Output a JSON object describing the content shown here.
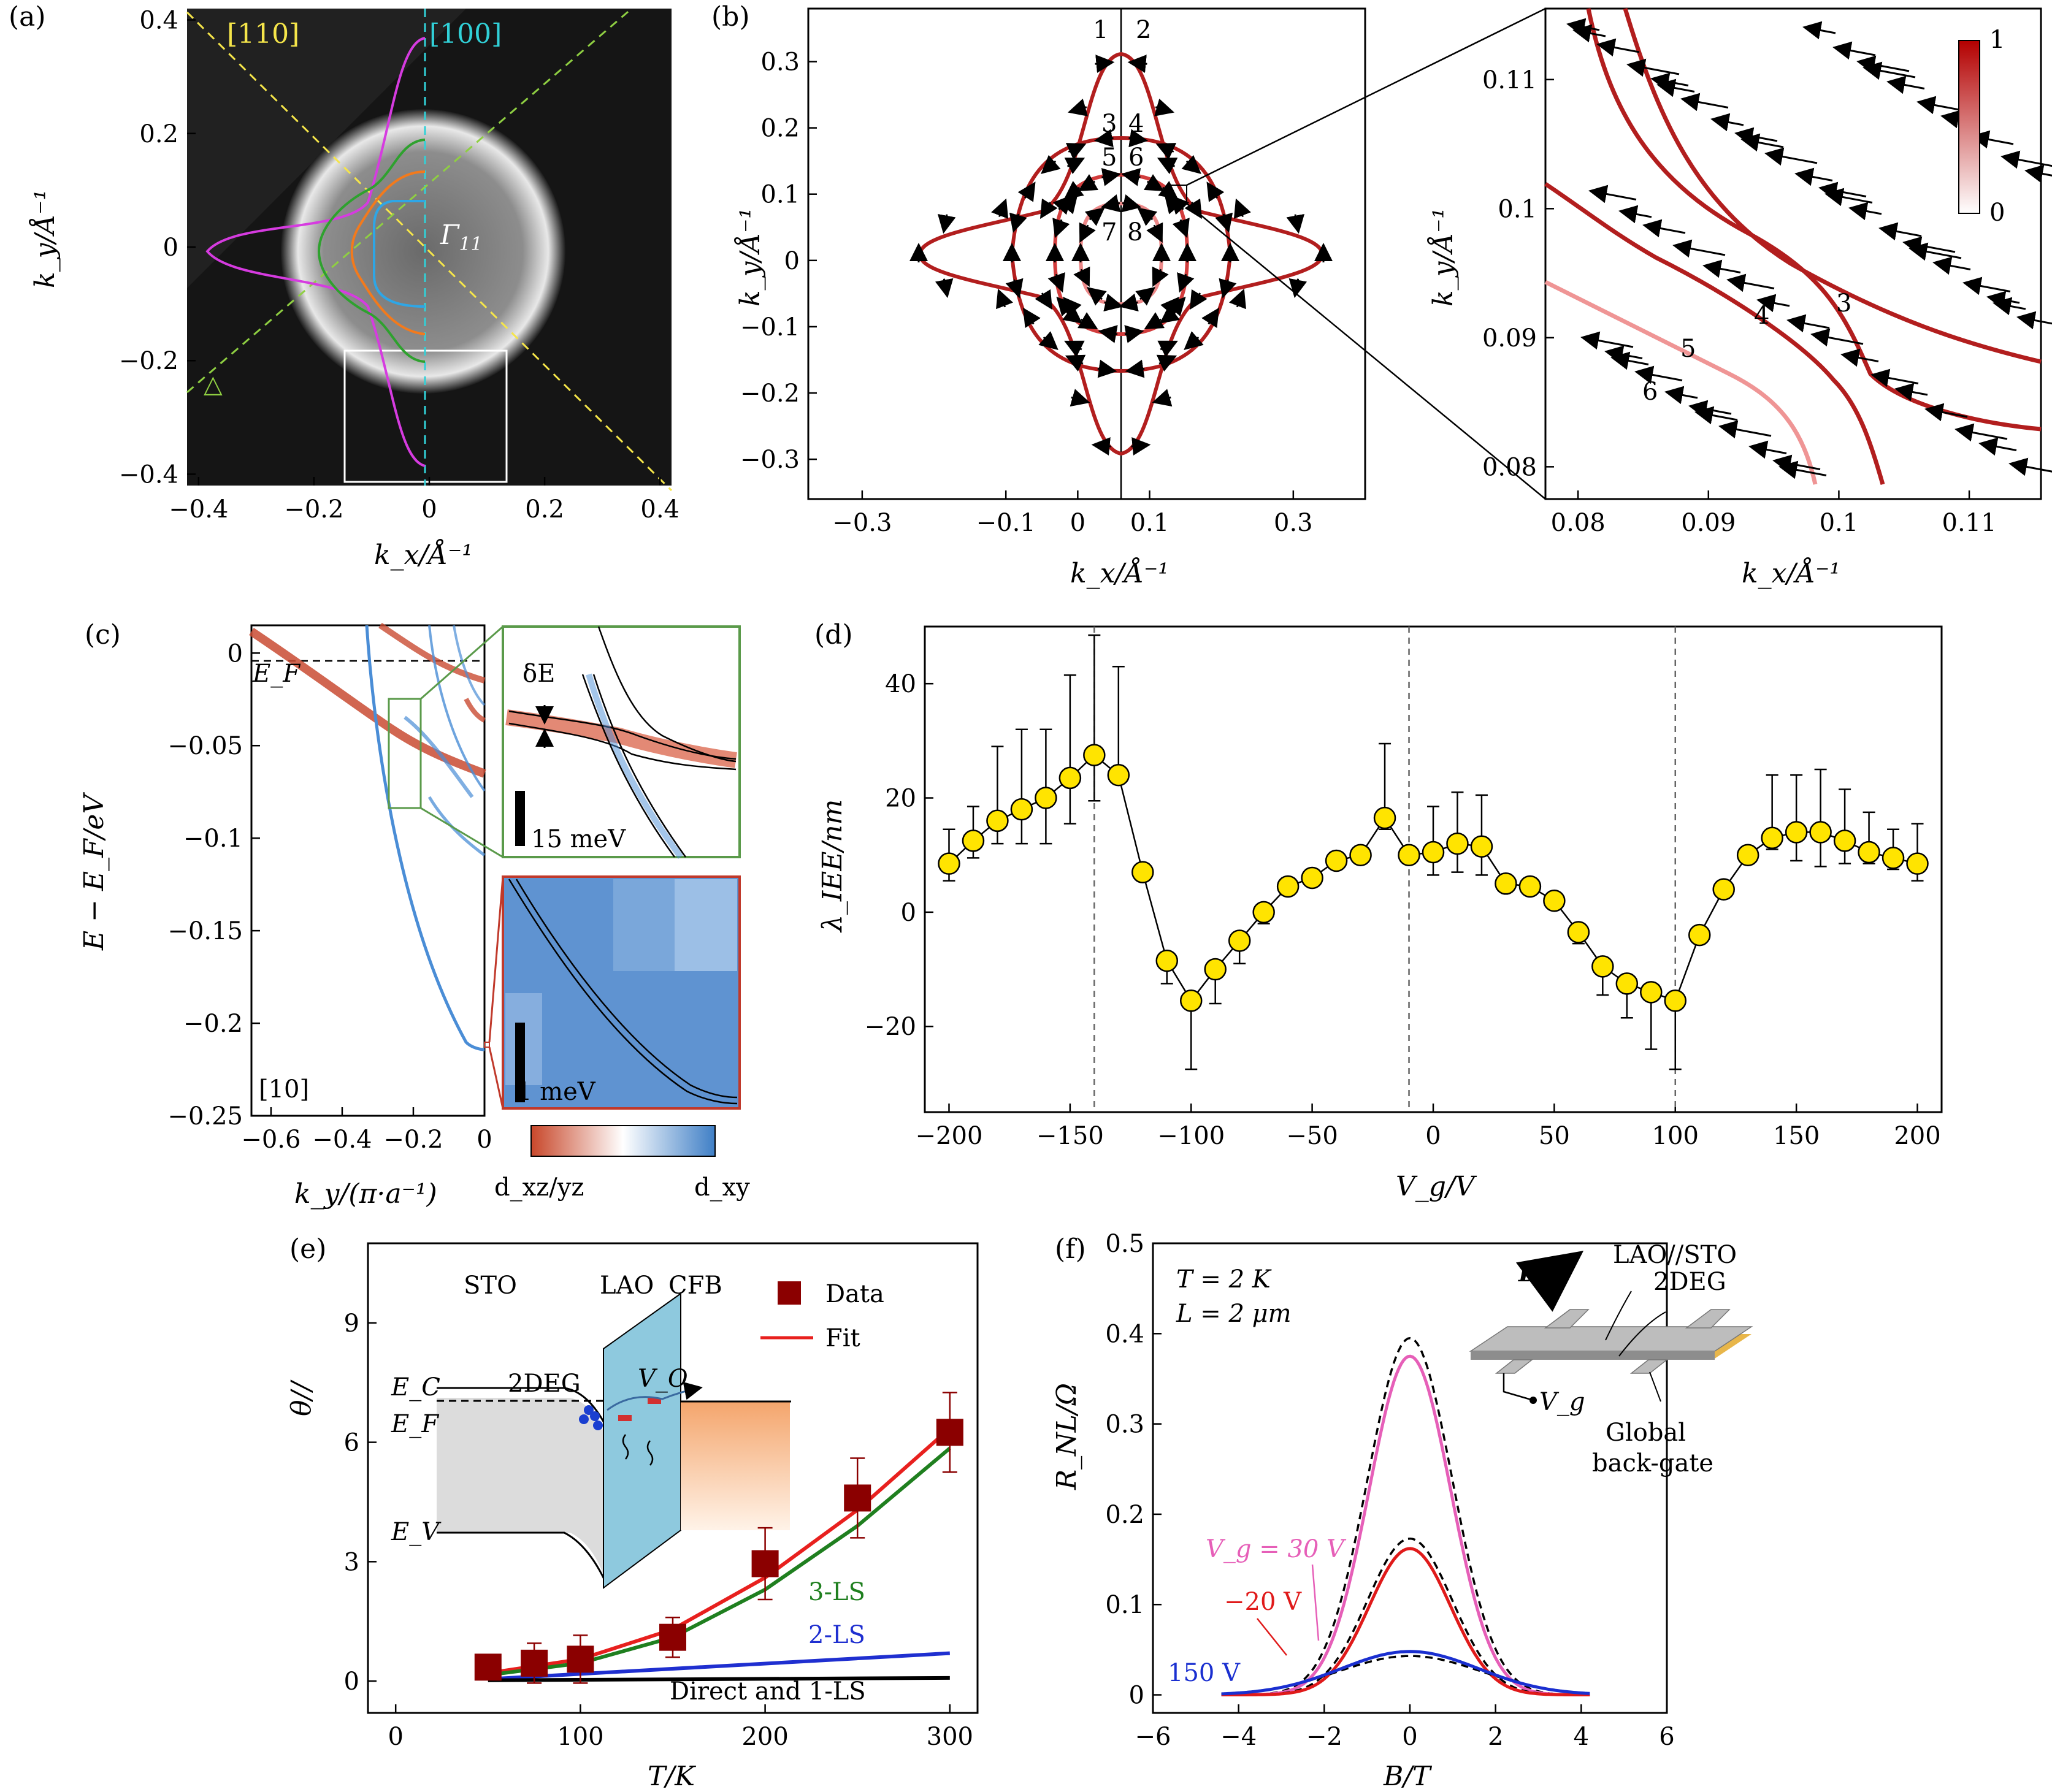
{
  "panels": {
    "a": {
      "label": "(a)",
      "dir1": "[110]",
      "dir2": "[100]",
      "gamma": "Γ",
      "gamma_sub": "11",
      "delta": "△",
      "xlabel": "k_x/Å⁻¹",
      "ylabel": "k_y/Å⁻¹",
      "xticks": [
        -0.4,
        -0.2,
        0,
        0.2,
        0.4
      ],
      "yticks": [
        -0.4,
        -0.2,
        0,
        0.2,
        0.4
      ],
      "xlim": [
        -0.42,
        0.42
      ],
      "ylim": [
        -0.42,
        0.42
      ]
    },
    "b": {
      "label": "(b)",
      "xlabel": "k_x/Å⁻¹",
      "ylabel": "k_y/Å⁻¹",
      "xticks": [
        -0.3,
        -0.1,
        0,
        0.1,
        0.3
      ],
      "yticks": [
        -0.3,
        -0.2,
        -0.1,
        0,
        0.1,
        0.2,
        0.3
      ],
      "band_labels": [
        "1",
        "2",
        "3",
        "4",
        "5",
        "6",
        "7",
        "8"
      ],
      "zoom_xticks": [
        0.08,
        0.09,
        0.1,
        0.11
      ],
      "zoom_yticks": [
        0.08,
        0.09,
        0.1,
        0.11
      ],
      "zoom_band_labels": [
        "3",
        "4",
        "5",
        "6"
      ],
      "colorbar": {
        "min": "0",
        "max": "1"
      }
    },
    "c": {
      "label": "(c)",
      "xlabel": "k_y/(π·a⁻¹)",
      "ylabel": "E − E_F/eV",
      "xticks": [
        -0.6,
        -0.4,
        -0.2,
        0
      ],
      "yticks": [
        0,
        -0.05,
        -0.1,
        -0.15,
        -0.2,
        -0.25
      ],
      "ef_label": "E_F",
      "direction": "[10]",
      "inset1_label": "δE",
      "inset1_scale": "15 meV",
      "inset2_scale": "1 meV",
      "colorbar_left": "d_xz/yz",
      "colorbar_right": "d_xy"
    },
    "d": {
      "label": "(d)",
      "xlabel": "V_g/V",
      "ylabel": "λ_IEE/nm",
      "xticks": [
        -200,
        -150,
        -100,
        -50,
        0,
        50,
        100,
        150,
        200
      ],
      "yticks": [
        -20,
        0,
        20,
        40
      ],
      "vlines": [
        -140,
        -10,
        100
      ]
    },
    "e": {
      "label": "(e)",
      "xlabel": "T/K",
      "ylabel": "θ//",
      "xticks": [
        0,
        100,
        200,
        300
      ],
      "yticks": [
        0,
        3,
        6,
        9
      ],
      "legend_data": "Data",
      "legend_fit": "Fit",
      "inset_labels": [
        "STO",
        "LAO",
        "CFB",
        "2DEG",
        "E_C",
        "E_F",
        "E_V",
        "V_O"
      ],
      "curve_labels": [
        "3-LS",
        "2-LS",
        "Direct and 1-LS"
      ]
    },
    "f": {
      "label": "(f)",
      "xlabel": "B/T",
      "ylabel": "R_NL/Ω",
      "xticks": [
        -6,
        -4,
        -2,
        0,
        2,
        4,
        6
      ],
      "yticks": [
        0,
        0.1,
        0.2,
        0.3,
        0.4,
        0.5
      ],
      "conditions": [
        "T = 2 K",
        "L = 2 μm"
      ],
      "device_labels": [
        "LAO//STO",
        "2DEG",
        "Global",
        "back-gate",
        "V_g",
        "B"
      ],
      "curve_labels": [
        "V_g = 30 V",
        "−20 V",
        "150 V"
      ]
    }
  },
  "chart_data": [
    {
      "id": "d",
      "type": "scatter",
      "title": "",
      "xlabel": "V_g/V",
      "ylabel": "λ_IEE/nm",
      "xlim": [
        -210,
        210
      ],
      "ylim": [
        -35,
        50
      ],
      "x": [
        -200,
        -190,
        -180,
        -170,
        -160,
        -150,
        -140,
        -130,
        -120,
        -110,
        -100,
        -90,
        -80,
        -70,
        -60,
        -50,
        -40,
        -30,
        -20,
        -10,
        0,
        10,
        20,
        30,
        40,
        50,
        60,
        70,
        80,
        90,
        100,
        110,
        120,
        130,
        140,
        150,
        160,
        170,
        180,
        190,
        200
      ],
      "y": [
        8.5,
        12.5,
        16,
        18,
        20,
        23.5,
        27.5,
        24,
        7,
        -8.5,
        -15.5,
        -10,
        -5,
        0,
        4.5,
        6,
        9,
        10,
        16.5,
        10,
        10.5,
        12,
        11.5,
        5,
        4.5,
        2,
        -3.5,
        -9.5,
        -12.5,
        -14,
        -15.5,
        -4,
        4,
        10,
        13,
        14,
        14,
        12.5,
        10.5,
        9.5,
        8.5
      ],
      "err_up": [
        6,
        6,
        13,
        14,
        12,
        18,
        21,
        19,
        0,
        0,
        0,
        0,
        0,
        0,
        0,
        0,
        0,
        0,
        13,
        0,
        8,
        9,
        9,
        0,
        0,
        0,
        0,
        0,
        0,
        0,
        0,
        0,
        0,
        0,
        11,
        10,
        11,
        9,
        7,
        5,
        7
      ],
      "err_down": [
        3,
        3,
        4,
        6,
        8,
        8,
        8,
        0,
        0,
        4,
        12,
        6,
        4,
        2,
        0,
        0,
        0,
        0,
        2,
        0,
        4,
        5,
        5,
        0,
        0,
        0,
        2,
        5,
        6,
        10,
        12,
        0,
        0,
        0,
        2,
        5,
        6,
        4,
        2,
        2,
        3
      ]
    },
    {
      "id": "e",
      "type": "scatter",
      "title": "",
      "xlabel": "T/K",
      "ylabel": "θ//",
      "xlim": [
        -15,
        315
      ],
      "ylim": [
        -0.8,
        11
      ],
      "x": [
        50,
        75,
        100,
        150,
        200,
        250,
        300
      ],
      "y": [
        0.35,
        0.45,
        0.55,
        1.1,
        2.95,
        4.6,
        6.25
      ],
      "err": [
        0.3,
        0.5,
        0.6,
        0.5,
        0.9,
        1.0,
        1.0
      ],
      "series": [
        {
          "name": "Fit",
          "x": [
            50,
            100,
            150,
            200,
            250,
            300
          ],
          "y": [
            0.2,
            0.55,
            1.3,
            2.6,
            4.3,
            6.35
          ]
        },
        {
          "name": "3-LS",
          "x": [
            50,
            100,
            150,
            200,
            250,
            300
          ],
          "y": [
            0.15,
            0.45,
            1.1,
            2.3,
            3.9,
            5.85
          ]
        },
        {
          "name": "2-LS",
          "x": [
            50,
            300
          ],
          "y": [
            0.05,
            0.7
          ]
        },
        {
          "name": "Direct and 1-LS",
          "x": [
            50,
            300
          ],
          "y": [
            0.02,
            0.08
          ]
        }
      ]
    },
    {
      "id": "f",
      "type": "line",
      "title": "",
      "xlabel": "B/T",
      "ylabel": "R_NL/Ω",
      "xlim": [
        -6,
        6
      ],
      "ylim": [
        -0.02,
        0.5
      ],
      "series": [
        {
          "name": "V_g = 30 V",
          "peak": 0.375,
          "sigma": 0.95,
          "fit_peak": 0.395
        },
        {
          "name": "−20 V",
          "peak": 0.162,
          "sigma": 0.95,
          "fit_peak": 0.173
        },
        {
          "name": "150 V",
          "peak": 0.048,
          "sigma": 1.6,
          "fit_peak": 0.043
        }
      ]
    }
  ]
}
